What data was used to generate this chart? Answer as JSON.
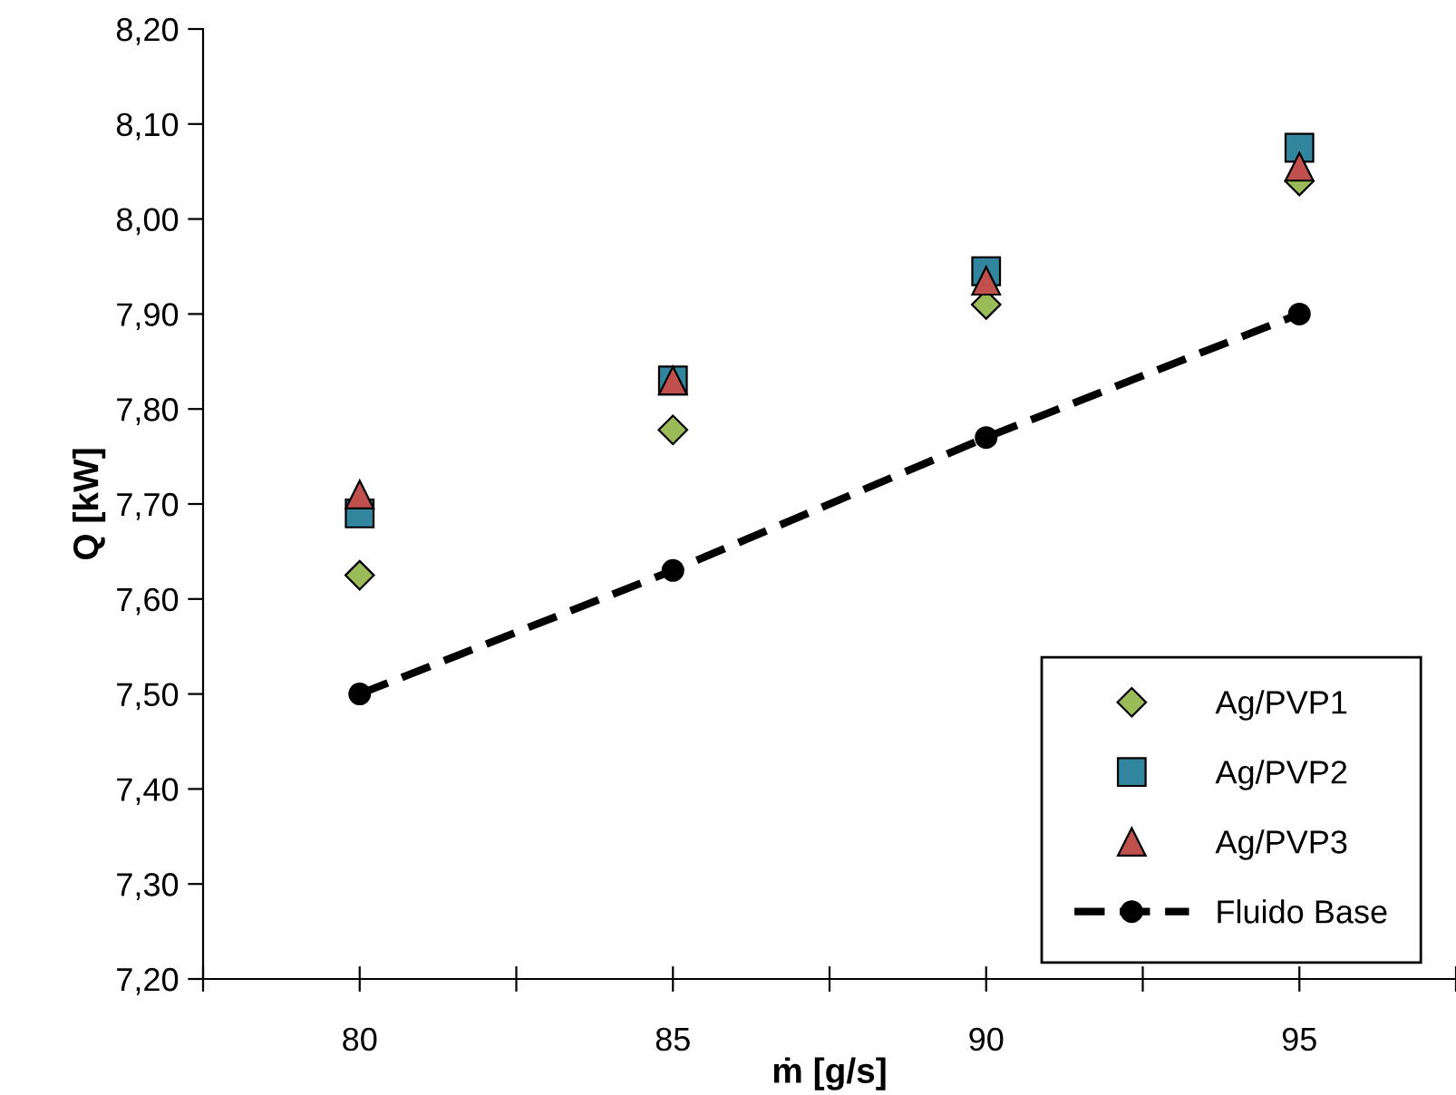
{
  "chart_data": {
    "type": "scatter",
    "xlabel": "ṁ [g/s]",
    "ylabel": "Q [kW]",
    "x": [
      80,
      85,
      90,
      95
    ],
    "series": [
      {
        "name": "Ag/PVP1",
        "color": "#9bbb59",
        "marker": "diamond",
        "values": [
          7.625,
          7.778,
          7.91,
          8.04
        ]
      },
      {
        "name": "Ag/PVP2",
        "color": "#31859c",
        "marker": "square",
        "values": [
          7.69,
          7.83,
          7.945,
          8.075
        ]
      },
      {
        "name": "Ag/PVP3",
        "color": "#c0504d",
        "marker": "triangle",
        "values": [
          7.71,
          7.83,
          7.935,
          8.055
        ]
      },
      {
        "name": "Fluido Base",
        "type": "line",
        "color": "#000000",
        "marker": "circle",
        "line_style": "dashed",
        "values": [
          7.5,
          7.63,
          7.77,
          7.9
        ]
      }
    ],
    "xlim": [
      77.5,
      97.5
    ],
    "xticks": [
      {
        "value": 77.5,
        "label": null
      },
      80,
      {
        "value": 82.5,
        "label": null
      },
      85,
      {
        "value": 87.5,
        "label": null
      },
      90,
      {
        "value": 92.5,
        "label": null
      },
      95,
      {
        "value": 97.5,
        "label": null
      }
    ],
    "ylim": [
      7.2,
      8.2
    ],
    "yticks": [
      {
        "value": 7.2,
        "label": "7,20"
      },
      {
        "value": 7.3,
        "label": "7,30"
      },
      {
        "value": 7.4,
        "label": "7,40"
      },
      {
        "value": 7.5,
        "label": "7,50"
      },
      {
        "value": 7.6,
        "label": "7,60"
      },
      {
        "value": 7.7,
        "label": "7,70"
      },
      {
        "value": 7.8,
        "label": "7,80"
      },
      {
        "value": 7.9,
        "label": "7,90"
      },
      {
        "value": 8.0,
        "label": "8,00"
      },
      {
        "value": 8.1,
        "label": "8,10"
      },
      {
        "value": 8.2,
        "label": "8,20"
      }
    ],
    "grid": false,
    "legend": "bottom right"
  }
}
